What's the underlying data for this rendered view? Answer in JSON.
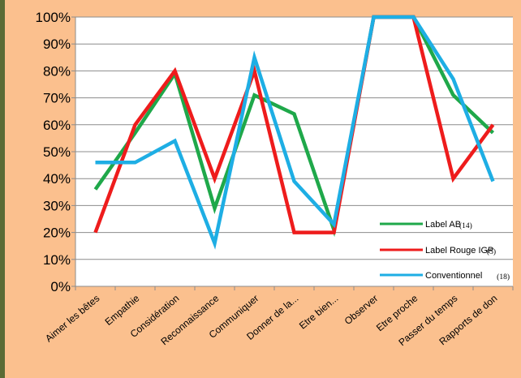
{
  "chart_data": {
    "type": "line",
    "title": "",
    "xlabel": "",
    "ylabel": "",
    "ylim": [
      0,
      100
    ],
    "y_ticks": [
      "0%",
      "10%",
      "20%",
      "30%",
      "40%",
      "50%",
      "60%",
      "70%",
      "80%",
      "90%",
      "100%"
    ],
    "grid": true,
    "legend_position": "bottom-right",
    "categories": [
      "Aimer les bêtes",
      "Empathie",
      "Considération",
      "Reconnaissance",
      "Communiquer",
      "Donner de la...",
      "Etre bien...",
      "Observer",
      "Etre proche",
      "Passer du temps",
      "Rapports de don"
    ],
    "series": [
      {
        "name": "Label AB",
        "count": "(14)",
        "color": "#1fa84a",
        "values": [
          36,
          57,
          79,
          29,
          71,
          64,
          21,
          100,
          100,
          71,
          57
        ]
      },
      {
        "name": "Label Rouge IGP",
        "count": "(5)",
        "color": "#ee1c1c",
        "values": [
          20,
          60,
          80,
          40,
          80,
          20,
          20,
          100,
          100,
          40,
          60
        ]
      },
      {
        "name": "Conventionnel",
        "count": "(18)",
        "color": "#1eaee4",
        "values": [
          46,
          46,
          54,
          16,
          85,
          39,
          23,
          100,
          100,
          77,
          39
        ]
      }
    ]
  }
}
